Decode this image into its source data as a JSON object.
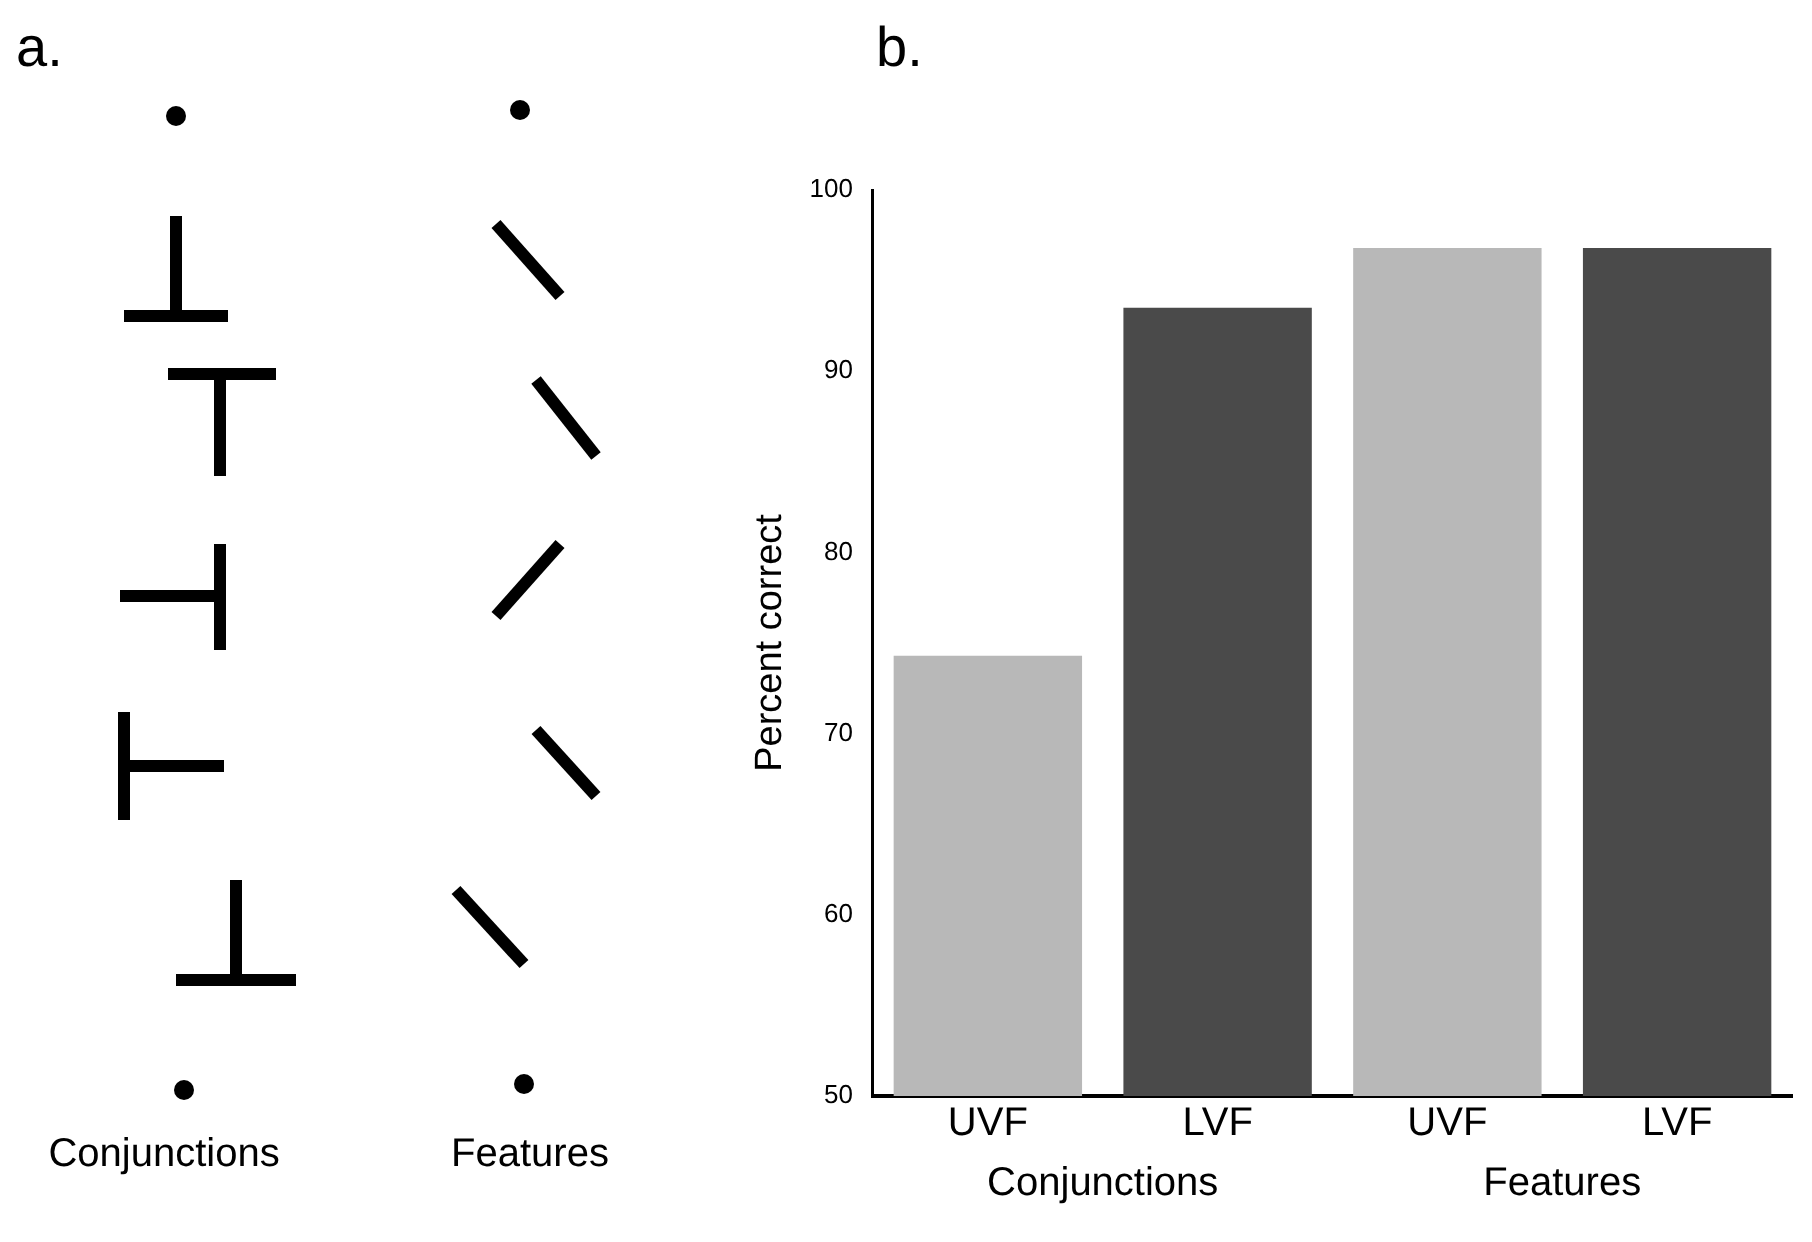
{
  "chart_data": [
    {
      "type": "other",
      "title": "a.",
      "annotations": [
        "Conjunctions",
        "Features"
      ]
    },
    {
      "type": "bar",
      "title": "b.",
      "categories": [
        "UVF",
        "LVF",
        "UVF",
        "LVF"
      ],
      "values": [
        74.3,
        93.5,
        96.8,
        96.8
      ],
      "colors": [
        "#b8b8b8",
        "#4a4a4a",
        "#b8b8b8",
        "#4a4a4a"
      ],
      "ylabel": "Percent correct",
      "ylim": [
        50,
        100
      ],
      "yticks": [
        50,
        60,
        70,
        80,
        90,
        100
      ],
      "grid": false,
      "legend": false,
      "annotations": [
        "Conjunctions",
        "Features"
      ]
    }
  ]
}
